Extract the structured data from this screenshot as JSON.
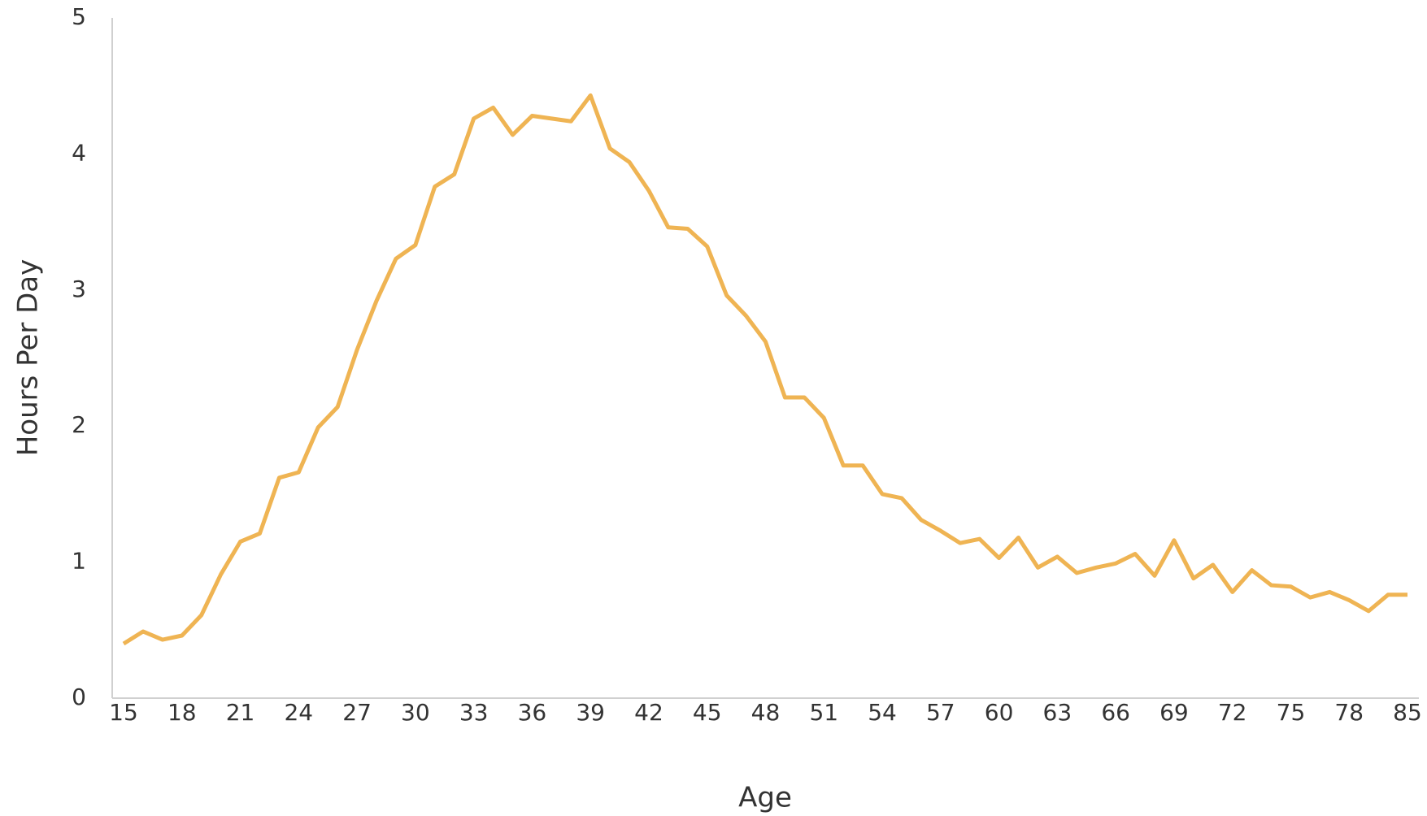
{
  "chart_data": {
    "type": "line",
    "xlabel": "Age",
    "ylabel": "Hours Per Day",
    "categories": [
      "15",
      null,
      null,
      "18",
      null,
      null,
      "21",
      null,
      null,
      "24",
      null,
      null,
      "27",
      null,
      null,
      "30",
      null,
      null,
      "33",
      null,
      null,
      "36",
      null,
      null,
      "39",
      null,
      null,
      "42",
      null,
      null,
      "45",
      null,
      null,
      "48",
      null,
      null,
      "51",
      null,
      null,
      "54",
      null,
      null,
      "57",
      null,
      null,
      "60",
      null,
      null,
      "63",
      null,
      null,
      "66",
      null,
      null,
      "69",
      null,
      null,
      "72",
      null,
      null,
      "75",
      null,
      null,
      "78",
      null,
      null,
      "85"
    ],
    "series": [
      {
        "name": "Hours Per Day",
        "color": "#efb453",
        "values": [
          0.4,
          0.49,
          0.43,
          0.46,
          0.61,
          0.91,
          1.15,
          1.21,
          1.62,
          1.66,
          1.99,
          2.14,
          2.56,
          2.92,
          3.23,
          3.33,
          3.76,
          3.85,
          4.26,
          4.34,
          4.14,
          4.28,
          4.26,
          4.24,
          4.43,
          4.04,
          3.94,
          3.73,
          3.46,
          3.45,
          3.32,
          2.96,
          2.81,
          2.62,
          2.21,
          2.21,
          2.06,
          1.71,
          1.71,
          1.5,
          1.47,
          1.31,
          1.23,
          1.14,
          1.17,
          1.03,
          1.18,
          0.96,
          1.04,
          0.92,
          0.96,
          0.99,
          1.06,
          0.9,
          1.16,
          0.88,
          0.98,
          0.78,
          0.94,
          0.83,
          0.82,
          0.74,
          0.78,
          0.72,
          0.64,
          0.76,
          0.76
        ]
      }
    ],
    "ylim": [
      0,
      5
    ],
    "yticks": [
      0,
      1,
      2,
      3,
      4,
      5
    ],
    "grid": false
  }
}
